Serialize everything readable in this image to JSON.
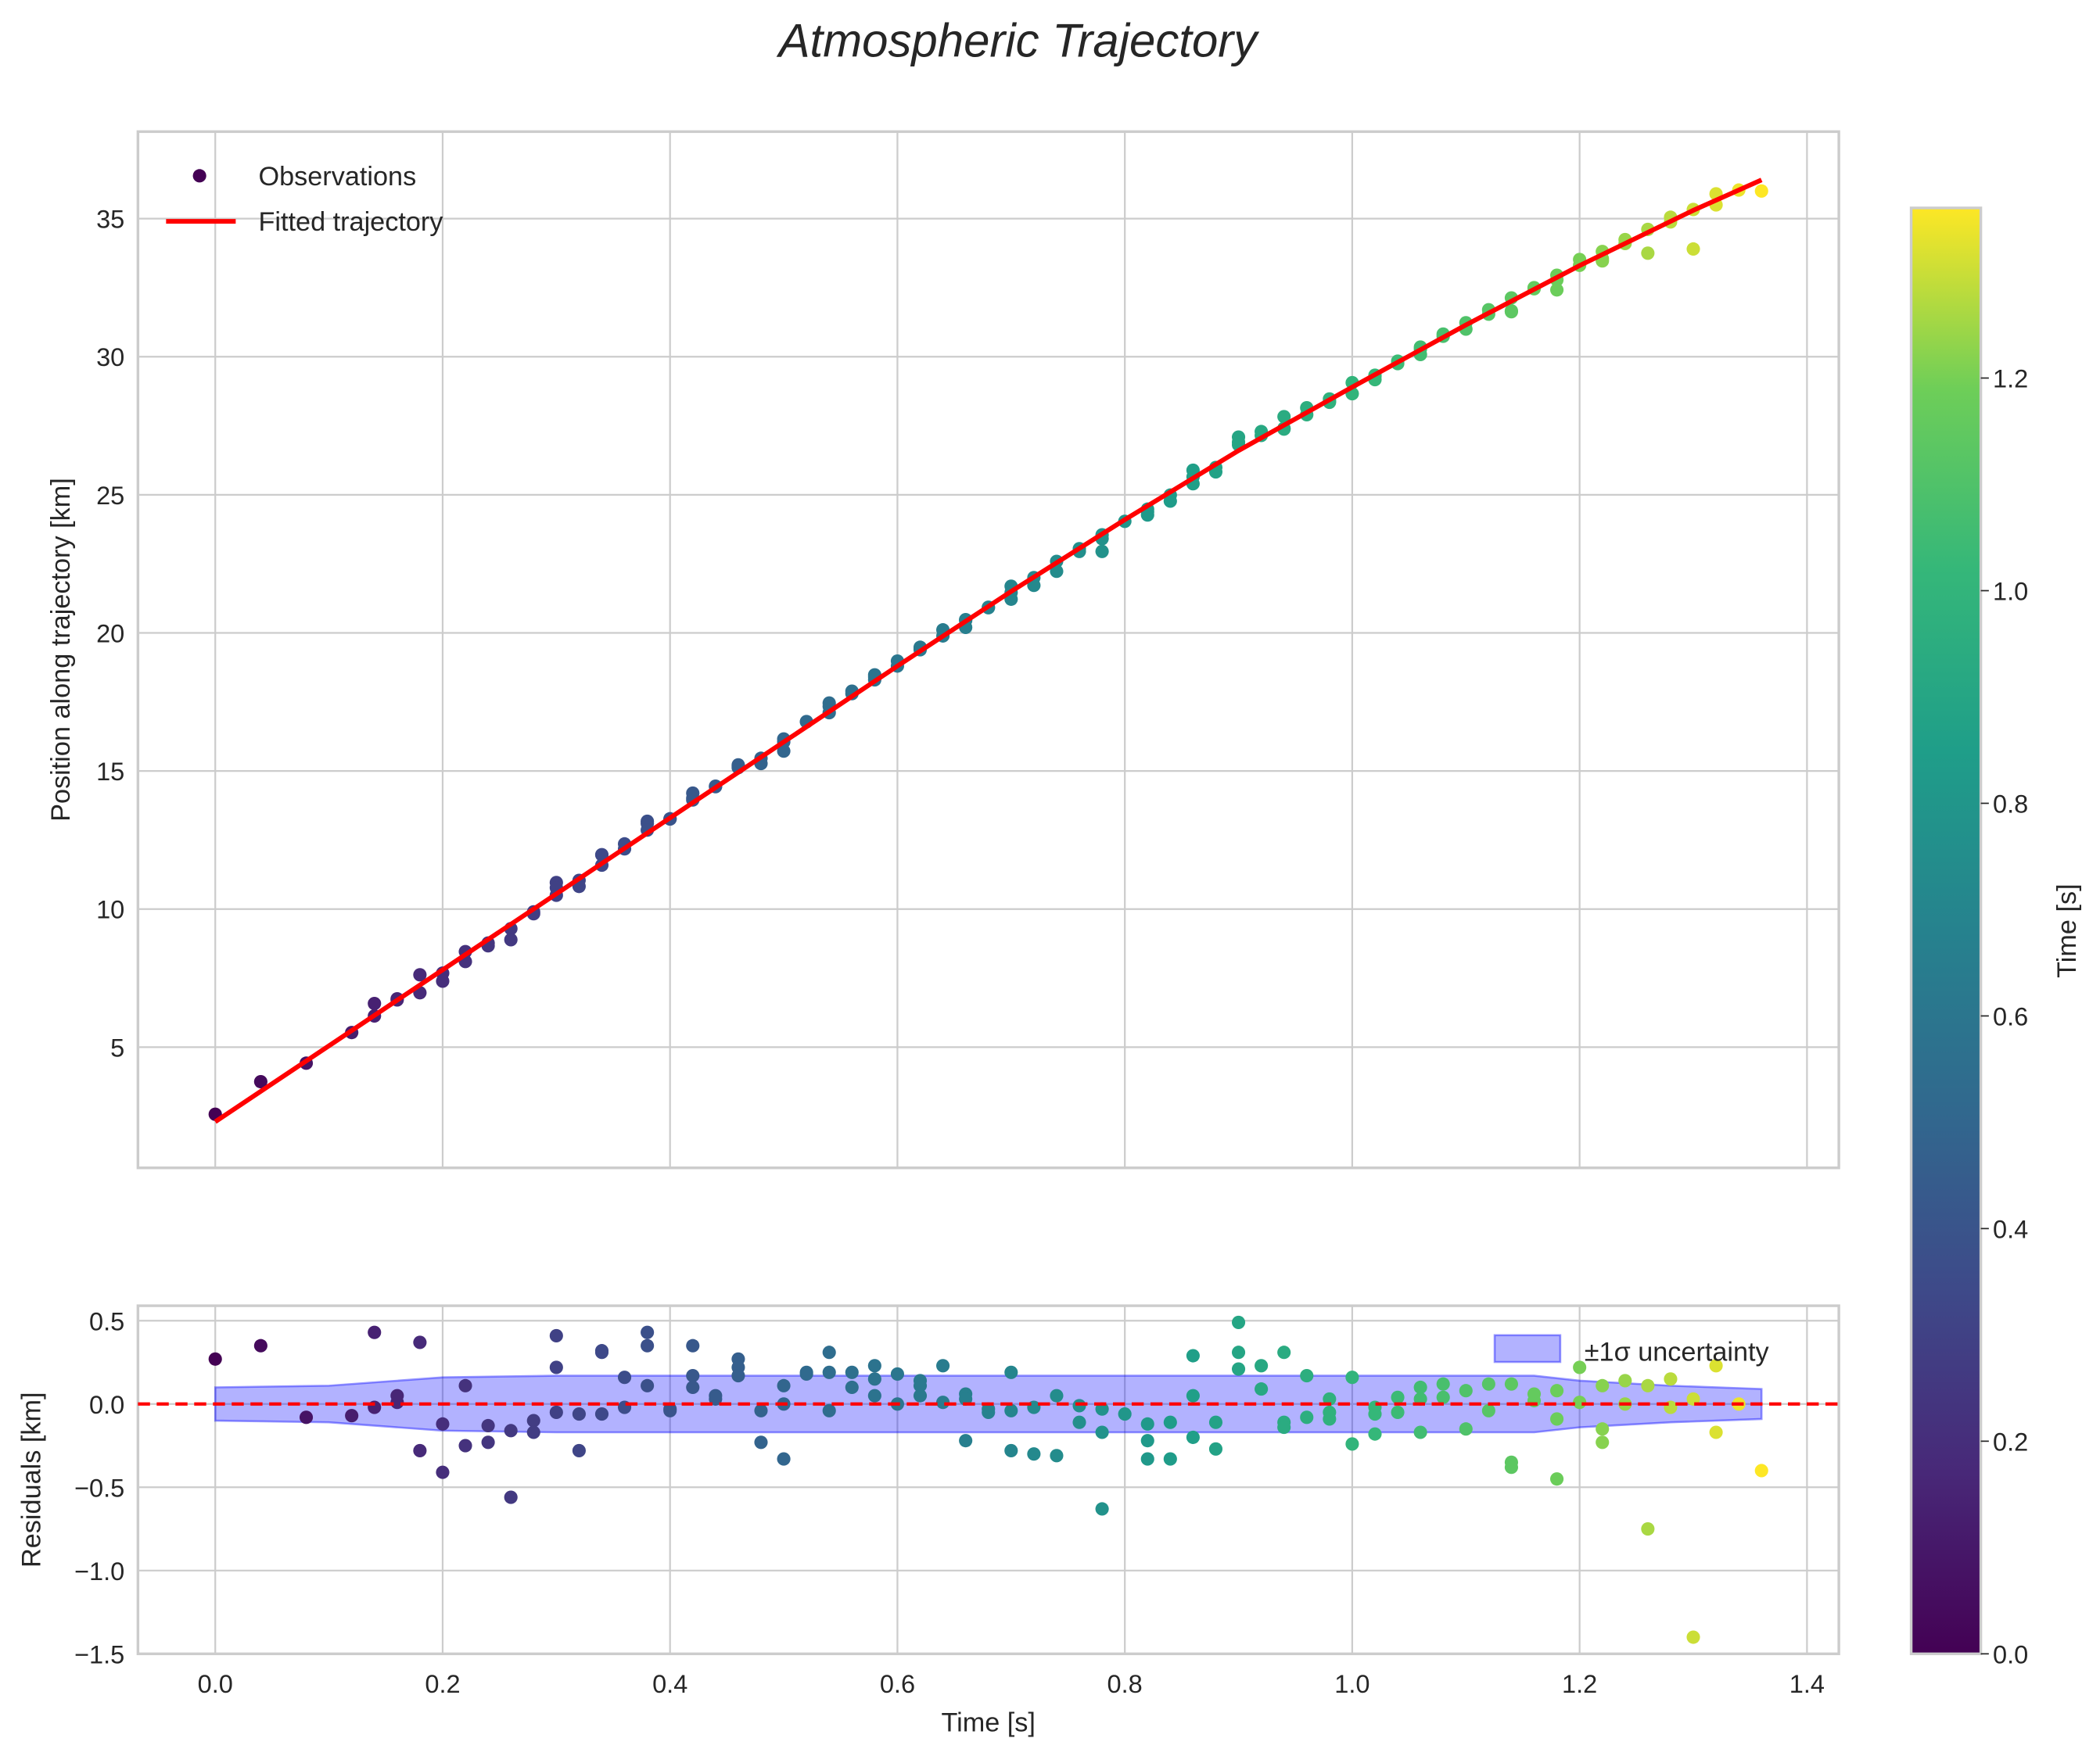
{
  "chart_data": [
    {
      "type": "scatter",
      "title": "Atmospheric Trajectory",
      "xlabel": "",
      "ylabel": "Position along trajectory [km]",
      "xlim": [
        -0.068,
        1.428
      ],
      "ylim": [
        0.63,
        38.15
      ],
      "grid": true,
      "legend": {
        "placement": "top-left",
        "entries": [
          "Observations",
          "Fitted trajectory"
        ]
      },
      "xticks": [
        0.0,
        0.2,
        0.4,
        0.6,
        0.8,
        1.0,
        1.2,
        1.4
      ],
      "xtick_labels": [
        "0.0",
        "0.2",
        "0.4",
        "0.6",
        "0.8",
        "1.0",
        "1.2",
        "1.4"
      ],
      "yticks": [
        5,
        10,
        15,
        20,
        25,
        30,
        35
      ],
      "ytick_labels": [
        "5",
        "10",
        "15",
        "20",
        "25",
        "30",
        "35"
      ],
      "fit": {
        "name": "Fitted trajectory",
        "color": "#ff0000",
        "t": [
          0,
          0.1,
          0.2,
          0.3,
          0.4,
          0.5,
          0.6,
          0.7,
          0.8,
          0.9,
          1.0,
          1.1,
          1.2,
          1.3,
          1.36
        ],
        "position": [
          2.3,
          5.05,
          7.8,
          10.55,
          13.3,
          16.05,
          18.8,
          21.5,
          24.1,
          26.6,
          28.9,
          31.15,
          33.3,
          35.3,
          36.4
        ]
      },
      "observations_note_series": "Observations",
      "observations_are": "fit(t) + residual"
    },
    {
      "type": "scatter",
      "xlabel": "Time [s]",
      "ylabel": "Residuals [km]",
      "xlim": [
        -0.068,
        1.428
      ],
      "ylim": [
        -1.5,
        0.59
      ],
      "grid": true,
      "legend": {
        "placement": "top-right",
        "entries": [
          "±1σ uncertainty"
        ]
      },
      "xticks": [
        0.0,
        0.2,
        0.4,
        0.6,
        0.8,
        1.0,
        1.2,
        1.4
      ],
      "xtick_labels": [
        "0.0",
        "0.2",
        "0.4",
        "0.6",
        "0.8",
        "1.0",
        "1.2",
        "1.4"
      ],
      "yticks": [
        0.5,
        0.0,
        -0.5,
        -1.0,
        -1.5
      ],
      "ytick_labels": [
        "0.5",
        "0.0",
        "−0.5",
        "−1.0",
        "−1.5"
      ],
      "zero_line_color": "#ff0000",
      "band": {
        "name": "±1σ uncertainty",
        "color": "#0000ff",
        "t": [
          0,
          0.1,
          0.2,
          0.3,
          0.4,
          0.6,
          0.8,
          1.0,
          1.16,
          1.2,
          1.28,
          1.36
        ],
        "sigma": [
          0.1,
          0.11,
          0.16,
          0.17,
          0.17,
          0.17,
          0.17,
          0.17,
          0.17,
          0.14,
          0.11,
          0.09
        ]
      },
      "t": [
        0,
        0.04,
        0.08,
        0.12,
        0.14,
        0.14,
        0.16,
        0.16,
        0.18,
        0.18,
        0.2,
        0.2,
        0.22,
        0.22,
        0.24,
        0.24,
        0.26,
        0.26,
        0.28,
        0.28,
        0.3,
        0.3,
        0.3,
        0.32,
        0.32,
        0.34,
        0.34,
        0.34,
        0.36,
        0.36,
        0.38,
        0.38,
        0.38,
        0.4,
        0.4,
        0.42,
        0.42,
        0.42,
        0.44,
        0.44,
        0.46,
        0.46,
        0.46,
        0.48,
        0.48,
        0.5,
        0.5,
        0.5,
        0.52,
        0.52,
        0.54,
        0.54,
        0.54,
        0.56,
        0.56,
        0.58,
        0.58,
        0.58,
        0.6,
        0.6,
        0.62,
        0.62,
        0.62,
        0.64,
        0.64,
        0.66,
        0.66,
        0.66,
        0.68,
        0.68,
        0.7,
        0.7,
        0.7,
        0.72,
        0.72,
        0.74,
        0.74,
        0.76,
        0.76,
        0.78,
        0.78,
        0.78,
        0.8,
        0.82,
        0.82,
        0.82,
        0.84,
        0.84,
        0.86,
        0.86,
        0.86,
        0.88,
        0.88,
        0.9,
        0.9,
        0.9,
        0.92,
        0.92,
        0.94,
        0.94,
        0.94,
        0.96,
        0.96,
        0.98,
        0.98,
        0.98,
        1.0,
        1.0,
        1.02,
        1.02,
        1.02,
        1.04,
        1.04,
        1.06,
        1.06,
        1.06,
        1.08,
        1.08,
        1.1,
        1.1,
        1.12,
        1.12,
        1.14,
        1.14,
        1.14,
        1.16,
        1.16,
        1.18,
        1.18,
        1.18,
        1.2,
        1.2,
        1.22,
        1.22,
        1.22,
        1.24,
        1.24,
        1.26,
        1.26,
        1.28,
        1.28,
        1.3,
        1.3,
        1.32,
        1.32,
        1.34,
        1.36
      ],
      "residual": [
        0.27,
        0.35,
        -0.08,
        -0.07,
        0.43,
        -0.02,
        0.05,
        0.01,
        0.37,
        -0.28,
        -0.12,
        -0.41,
        0.11,
        -0.25,
        -0.13,
        -0.23,
        -0.16,
        -0.56,
        -0.1,
        -0.17,
        0.41,
        0.22,
        -0.05,
        -0.06,
        -0.28,
        0.32,
        0.31,
        -0.06,
        0.16,
        -0.02,
        0.43,
        0.35,
        0.11,
        -0.03,
        -0.04,
        0.35,
        0.17,
        0.1,
        0.05,
        0.03,
        0.27,
        0.22,
        0.17,
        -0.04,
        -0.23,
        0.11,
        0,
        -0.33,
        0.19,
        0.18,
        0.31,
        0.19,
        -0.04,
        0.19,
        0.1,
        0.23,
        0.15,
        0.05,
        0.18,
        0,
        0.14,
        0.11,
        0.05,
        0.23,
        0.01,
        0.06,
        0.03,
        -0.22,
        -0.03,
        -0.05,
        0.19,
        -0.04,
        -0.28,
        -0.02,
        -0.3,
        0.05,
        -0.31,
        -0.01,
        -0.11,
        -0.03,
        -0.17,
        -0.63,
        -0.06,
        -0.12,
        -0.22,
        -0.33,
        -0.11,
        -0.33,
        0.29,
        0.05,
        -0.2,
        -0.11,
        -0.27,
        0.49,
        0.31,
        0.21,
        0.23,
        0.09,
        0.31,
        -0.11,
        -0.14,
        0.17,
        -0.08,
        0.03,
        -0.05,
        -0.09,
        0.16,
        -0.24,
        -0.02,
        -0.06,
        -0.18,
        0.04,
        -0.05,
        0.1,
        0.03,
        -0.17,
        0.12,
        0.04,
        0.08,
        -0.15,
        0.12,
        -0.04,
        0.12,
        -0.35,
        -0.38,
        0.06,
        0.02,
        0.08,
        -0.09,
        -0.45,
        0.22,
        0.01,
        0.11,
        -0.15,
        -0.23,
        0.14,
        0,
        0.11,
        -0.75,
        0.15,
        -0.02,
        0.03,
        -1.4,
        0.23,
        -0.17,
        0,
        -0.4
      ]
    },
    {
      "type": "colorbar",
      "label": "Time [s]",
      "colormap": "viridis",
      "range": [
        0,
        1.36
      ],
      "ticks": [
        0.0,
        0.2,
        0.4,
        0.6,
        0.8,
        1.0,
        1.2
      ],
      "tick_labels": [
        "0.0",
        "0.2",
        "0.4",
        "0.6",
        "0.8",
        "1.0",
        "1.2"
      ]
    }
  ]
}
